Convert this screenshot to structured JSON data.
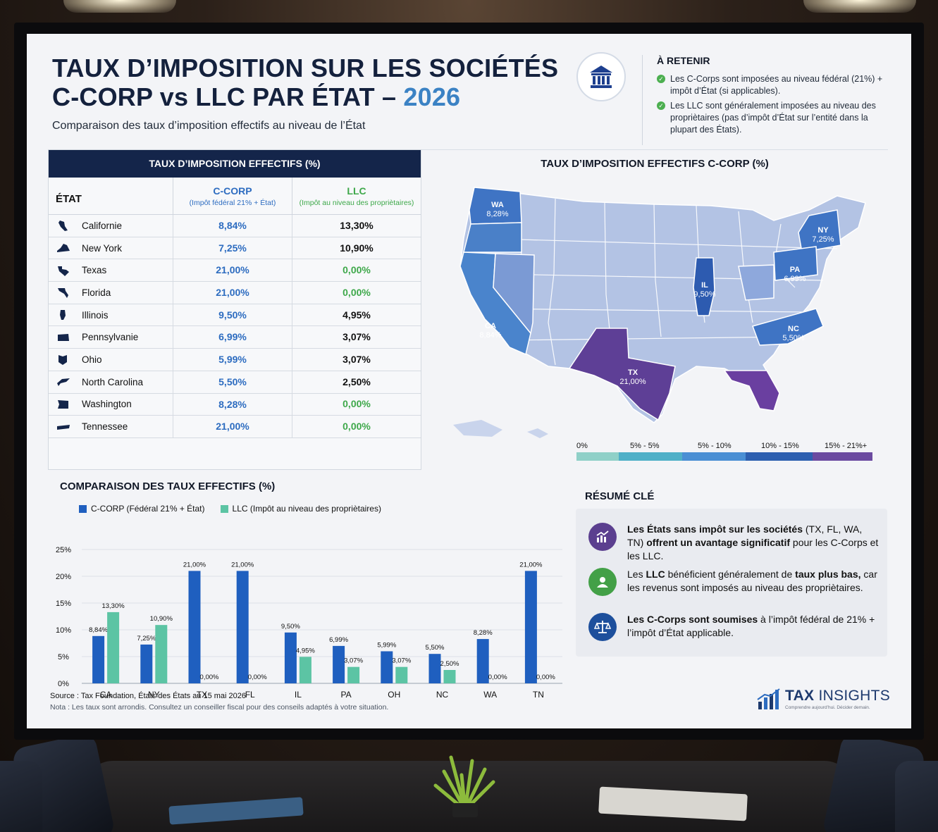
{
  "header": {
    "title_line1": "TAUX D’IMPOSITION SUR LES SOCIÉTÉS",
    "title_line2": "C-CORP vs LLC PAR ÉTAT – ",
    "title_year": "2026",
    "subtitle": "Comparaison des taux d’imposition effectifs au niveau de l’État"
  },
  "retenir": {
    "title": "À RETENIR",
    "items": [
      "Les C-Corps sont imposées au niveau fédéral (21%) + impôt d’État (si applicables).",
      "Les LLC sont généralement imposées au niveau des propriètaires (pas d’impôt d’État sur l’entité dans la plupart des États)."
    ]
  },
  "table": {
    "header": "TAUX D’IMPOSITION EFFECTIFS (%)",
    "col_state": "ÉTAT",
    "col_ccorp": "C-CORP",
    "col_ccorp_sub": "(Impôt fédéral 21% + État)",
    "col_llc": "LLC",
    "col_llc_sub": "(Impôt au niveau des propriètaires)",
    "rows": [
      {
        "state": "Californie",
        "ccorp": "8,84%",
        "llc": "13,30%"
      },
      {
        "state": "New York",
        "ccorp": "7,25%",
        "llc": "10,90%"
      },
      {
        "state": "Texas",
        "ccorp": "21,00%",
        "llc": "0,00%"
      },
      {
        "state": "Florida",
        "ccorp": "21,00%",
        "llc": "0,00%"
      },
      {
        "state": "Illinois",
        "ccorp": "9,50%",
        "llc": "4,95%"
      },
      {
        "state": "Pennsylvanie",
        "ccorp": "6,99%",
        "llc": "3,07%"
      },
      {
        "state": "Ohio",
        "ccorp": "5,99%",
        "llc": "3,07%"
      },
      {
        "state": "North Carolina",
        "ccorp": "5,50%",
        "llc": "2,50%"
      },
      {
        "state": "Washington",
        "ccorp": "8,28%",
        "llc": "0,00%"
      },
      {
        "state": "Tennessee",
        "ccorp": "21,00%",
        "llc": "0,00%"
      }
    ]
  },
  "map": {
    "title": "TAUX D’IMPOSITION EFFECTIFS C-CORP (%)",
    "labels": [
      {
        "code": "WA",
        "value": "8,28%"
      },
      {
        "code": "CA",
        "value": "8,84%"
      },
      {
        "code": "TX",
        "value": "21,00%"
      },
      {
        "code": "IL",
        "value": "9,50%"
      },
      {
        "code": "NY",
        "value": "7,25%"
      },
      {
        "code": "PA",
        "value": "6,99%"
      },
      {
        "code": "NC",
        "value": "5,50%"
      }
    ],
    "legend": [
      "0%",
      "5% - 5%",
      "5% - 10%",
      "10% - 15%",
      "15% - 21%+"
    ],
    "colors": [
      "#8fd0c8",
      "#4fb0c8",
      "#4a8fd4",
      "#2d5fb0",
      "#6b4aa0"
    ]
  },
  "resume": {
    "title": "RÉSUMÉ CLÉ",
    "items": [
      {
        "icon": "chart-growth-icon",
        "color": "#5b3f8f",
        "pre": "Les États sans impôt sur les sociétés",
        "mid": " (TX, FL, WA, TN) ",
        "bold2": "offrent un avantage significatif",
        "post": " pour les C-Corps et les LLC."
      },
      {
        "icon": "user-icon",
        "color": "#43a047",
        "pre": "Les ",
        "bold1": "LLC",
        "mid": " bénéficient généralement de ",
        "bold2": "taux plus bas,",
        "post": " car les revenus sont imposés au niveau des propriètaires."
      },
      {
        "icon": "balance-scale-icon",
        "color": "#1d4f9c",
        "pre": "Les C-Corps sont soumises",
        "mid": " à l’impôt fédéral de 21% + l’impôt d’État applicable.",
        "bold2": "",
        "post": ""
      }
    ]
  },
  "footer": {
    "source": "Source : Tax Foundation, États des États au 15 mai 2026",
    "note": "Nota : Les taux sont arrondis. Consultez un conseiller fiscal pour des conseils adaptés à votre situation.",
    "brand_bold": "TAX",
    "brand_rest": " INSIGHTS",
    "brand_slogan": "Comprendre aujourd’hui. Décider demain."
  },
  "chart_data": {
    "type": "bar",
    "title": "COMPARAISON DES TAUX EFFECTIFS (%)",
    "categories": [
      "CA",
      "NY",
      "TX",
      "FL",
      "IL",
      "PA",
      "OH",
      "NC",
      "WA",
      "TN"
    ],
    "series": [
      {
        "name": "C-CORP (Fédéral 21% + État)",
        "color": "#1f5fbf",
        "values": [
          8.84,
          7.25,
          21.0,
          21.0,
          9.5,
          6.99,
          5.99,
          5.5,
          8.28,
          21.0
        ],
        "labels": [
          "8,84%",
          "7,25%",
          "21,00%",
          "21,00%",
          "9,50%",
          "6,99%",
          "5,99%",
          "5,50%",
          "8,28%",
          "21,00%"
        ]
      },
      {
        "name": "LLC (Impôt au niveau des propriètaires)",
        "color": "#5cc4a4",
        "values": [
          13.3,
          10.9,
          0,
          0,
          4.95,
          3.07,
          3.07,
          2.5,
          0,
          0
        ],
        "labels": [
          "13,30%",
          "10,90%",
          "0,00%",
          "0,00%",
          "4,95%",
          "3,07%",
          "3,07%",
          "2,50%",
          "0,00%",
          "0,00%"
        ]
      }
    ],
    "yticks": [
      "0%",
      "5%",
      "10%",
      "15%",
      "20%",
      "25%"
    ],
    "ylim": [
      0,
      25
    ],
    "grid": true,
    "legend": "top-left"
  }
}
